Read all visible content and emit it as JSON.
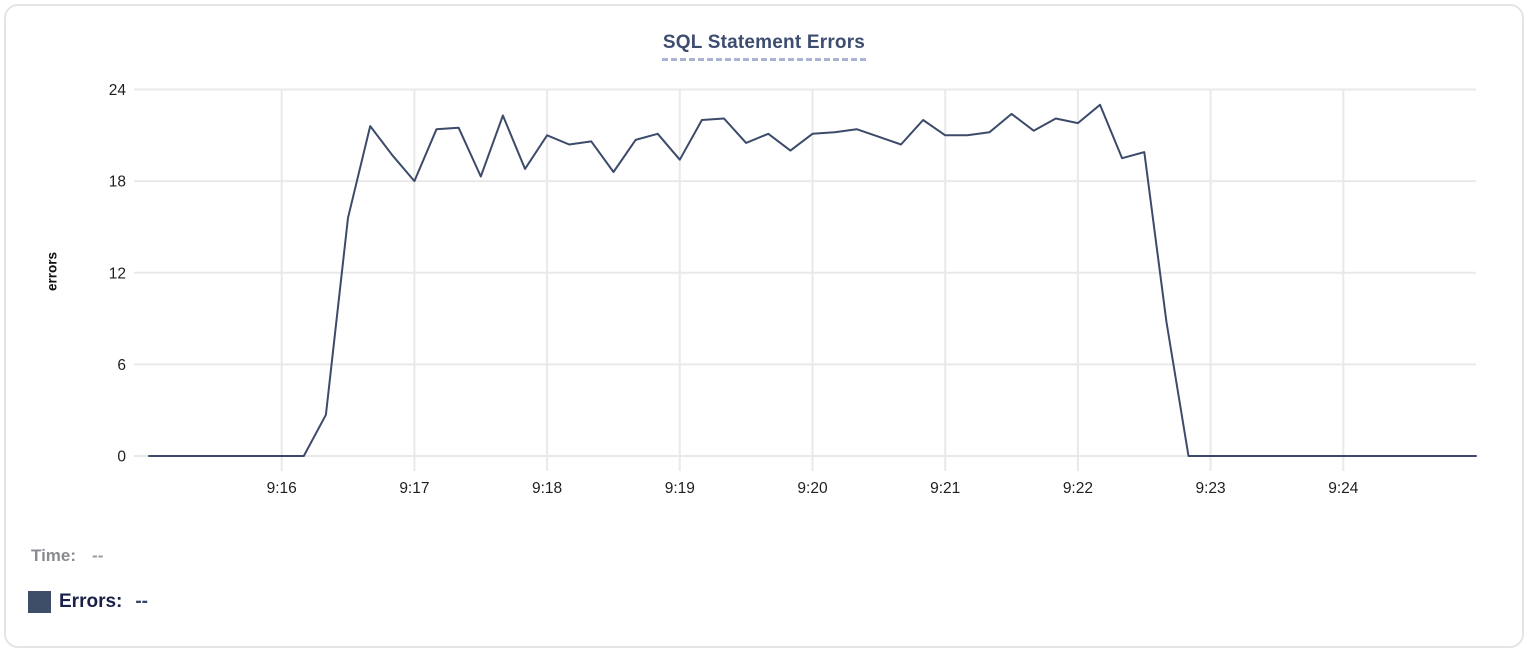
{
  "chart": {
    "title": "SQL Statement Errors",
    "ylabel": "errors"
  },
  "tooltip": {
    "time_label": "Time:",
    "time_value": "--",
    "errors_label": "Errors:",
    "errors_value": "--"
  },
  "colors": {
    "line": "#3c4b6a",
    "swatch": "#3e4d68",
    "title": "#3d4d70",
    "title_underline": "#a9b4d2",
    "grid": "#e9e9e9",
    "tick_text": "#1e1e1e",
    "time_text": "#8a8b90",
    "errors_text": "#1a2148"
  },
  "chart_data": {
    "type": "line",
    "title": "SQL Statement Errors",
    "xlabel": "",
    "ylabel": "errors",
    "grid": true,
    "legend_position": "bottom-left",
    "ylim": [
      0,
      24
    ],
    "y_ticks": [
      0,
      6,
      12,
      18,
      24
    ],
    "x_ticks": [
      "9:16",
      "9:17",
      "9:18",
      "9:19",
      "9:20",
      "9:21",
      "9:22",
      "9:23",
      "9:24"
    ],
    "x_range": [
      "9:15:00",
      "9:25:00"
    ],
    "interval_seconds": 10,
    "series": [
      {
        "name": "Errors",
        "color": "#3c4b6a",
        "times": [
          "9:15:00",
          "9:15:10",
          "9:15:20",
          "9:15:30",
          "9:15:40",
          "9:15:50",
          "9:16:00",
          "9:16:10",
          "9:16:20",
          "9:16:30",
          "9:16:40",
          "9:16:50",
          "9:17:00",
          "9:17:10",
          "9:17:20",
          "9:17:30",
          "9:17:40",
          "9:17:50",
          "9:18:00",
          "9:18:10",
          "9:18:20",
          "9:18:30",
          "9:18:40",
          "9:18:50",
          "9:19:00",
          "9:19:10",
          "9:19:20",
          "9:19:30",
          "9:19:40",
          "9:19:50",
          "9:20:00",
          "9:20:10",
          "9:20:20",
          "9:20:30",
          "9:20:40",
          "9:20:50",
          "9:21:00",
          "9:21:10",
          "9:21:20",
          "9:21:30",
          "9:21:40",
          "9:21:50",
          "9:22:00",
          "9:22:10",
          "9:22:20",
          "9:22:30",
          "9:22:40",
          "9:22:50",
          "9:23:00",
          "9:23:10",
          "9:23:20",
          "9:23:30",
          "9:23:40",
          "9:23:50",
          "9:24:00",
          "9:24:10",
          "9:24:20",
          "9:24:30",
          "9:24:40",
          "9:24:50",
          "9:25:00"
        ],
        "values": [
          0,
          0,
          0,
          0,
          0,
          0,
          0,
          0,
          2.7,
          15.6,
          21.6,
          19.7,
          18,
          21.4,
          21.5,
          18.3,
          22.3,
          18.8,
          21,
          20.4,
          20.6,
          18.6,
          20.7,
          21.1,
          19.4,
          22,
          22.1,
          20.5,
          21.1,
          20,
          21.1,
          21.2,
          21.4,
          20.9,
          20.4,
          22,
          21,
          21,
          21.2,
          22.4,
          21.3,
          22.1,
          21.8,
          23,
          19.5,
          19.9,
          8.8,
          0,
          0,
          0,
          0,
          0,
          0,
          0,
          0,
          0,
          0,
          0,
          0,
          0,
          0
        ]
      }
    ]
  }
}
